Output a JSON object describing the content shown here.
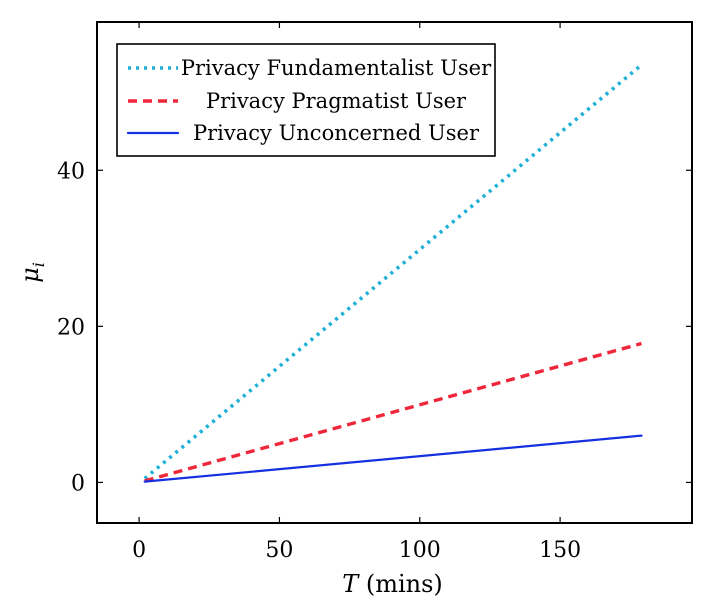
{
  "chart_data": {
    "type": "line",
    "title": "",
    "xlabel_var": "T",
    "xlabel_unit": " (mins)",
    "ylabel_var": "μ",
    "ylabel_sub": "i",
    "xlim": [
      -15,
      197
    ],
    "ylim": [
      -5.2,
      59
    ],
    "xticks": [
      0,
      50,
      100,
      150
    ],
    "yticks": [
      0,
      20,
      40
    ],
    "grid": false,
    "legend_position": "top-left",
    "series": [
      {
        "name": "Privacy Fundamentalist User",
        "color": "#1EB0D6",
        "style": "dotted",
        "x": [
          2,
          179
        ],
        "y": [
          0.5,
          53.5
        ]
      },
      {
        "name": "Privacy Pragmatist User",
        "color": "#F0263A",
        "style": "dashed",
        "x": [
          2,
          179
        ],
        "y": [
          0.2,
          17.8
        ]
      },
      {
        "name": "Privacy Unconcerned User",
        "color": "#1530E0",
        "style": "solid",
        "x": [
          2,
          179
        ],
        "y": [
          0.1,
          6
        ]
      }
    ]
  }
}
